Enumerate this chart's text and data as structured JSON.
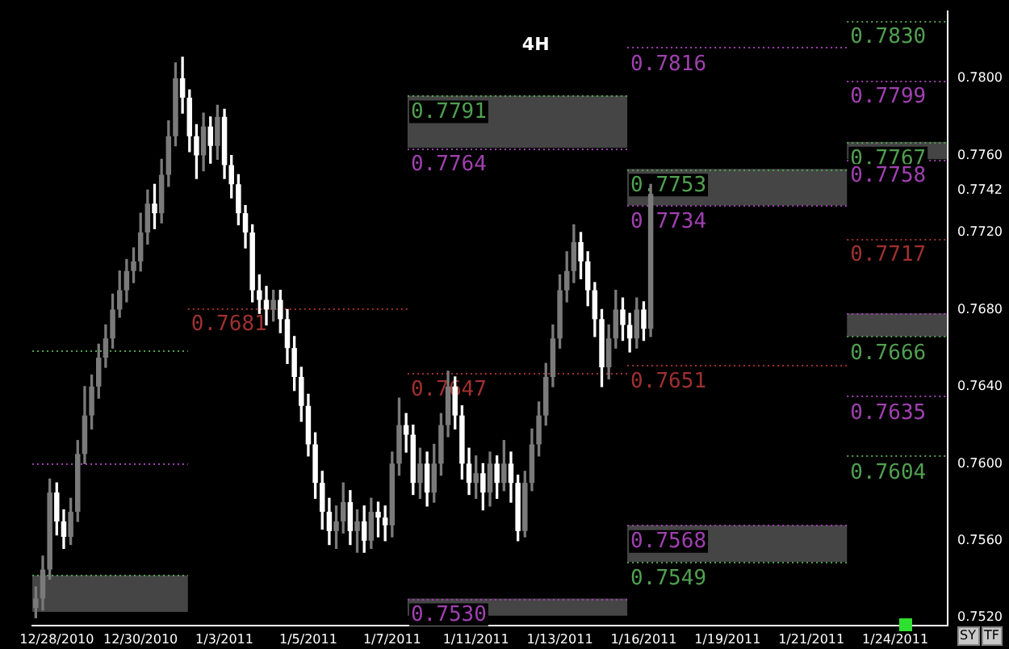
{
  "chart_data": {
    "type": "candlestick",
    "title": "4H",
    "categories": [
      null,
      null,
      null,
      "12/28/2010",
      null,
      null,
      null,
      null,
      null,
      null,
      null,
      null,
      null,
      null,
      null,
      "12/30/2010",
      null,
      null,
      null,
      null,
      null,
      null,
      null,
      null,
      null,
      null,
      null,
      "1/3/2011",
      null,
      null,
      null,
      null,
      null,
      null,
      null,
      null,
      null,
      null,
      null,
      "1/5/2011",
      null,
      null,
      null,
      null,
      null,
      null,
      null,
      null,
      null,
      null,
      null,
      "1/7/2011",
      null,
      null,
      null,
      null,
      null,
      null,
      null,
      null,
      null,
      null,
      null,
      "1/11/2011",
      null,
      null,
      null,
      null,
      null,
      null,
      null,
      null,
      null,
      null,
      null,
      "1/13/2011",
      null,
      null,
      null,
      null,
      null,
      null,
      null,
      null,
      null,
      null,
      null,
      "1/16/2011",
      null,
      null,
      null,
      null,
      null,
      null,
      null,
      null,
      null,
      null,
      null,
      "1/19/2011",
      null,
      null,
      null,
      null,
      null,
      null,
      null,
      null,
      null,
      null,
      null,
      "1/21/2011",
      null,
      null,
      null,
      null,
      null,
      null,
      null,
      null,
      null,
      null,
      null,
      "1/24/2011",
      null,
      null,
      null,
      null,
      null,
      null,
      null
    ],
    "ohlc": [
      [
        0.7525,
        0.7536,
        0.752,
        0.753
      ],
      [
        0.753,
        0.7552,
        0.7524,
        0.7545
      ],
      [
        0.7545,
        0.7592,
        0.754,
        0.7585
      ],
      [
        0.7585,
        0.759,
        0.7563,
        0.757
      ],
      [
        0.757,
        0.7576,
        0.7556,
        0.7562
      ],
      [
        0.7562,
        0.7582,
        0.7558,
        0.7575
      ],
      [
        0.7575,
        0.7612,
        0.757,
        0.7605
      ],
      [
        0.7605,
        0.764,
        0.76,
        0.7625
      ],
      [
        0.7625,
        0.7646,
        0.7618,
        0.764
      ],
      [
        0.764,
        0.7662,
        0.7634,
        0.7655
      ],
      [
        0.7655,
        0.7672,
        0.765,
        0.7665
      ],
      [
        0.7665,
        0.7688,
        0.766,
        0.768
      ],
      [
        0.768,
        0.77,
        0.7676,
        0.769
      ],
      [
        0.769,
        0.7706,
        0.7684,
        0.77
      ],
      [
        0.77,
        0.7712,
        0.7694,
        0.7705
      ],
      [
        0.7705,
        0.773,
        0.77,
        0.772
      ],
      [
        0.772,
        0.7742,
        0.7714,
        0.7735
      ],
      [
        0.7735,
        0.7745,
        0.7722,
        0.773
      ],
      [
        0.773,
        0.7758,
        0.7725,
        0.775
      ],
      [
        0.775,
        0.7778,
        0.7744,
        0.777
      ],
      [
        0.777,
        0.7808,
        0.7765,
        0.78
      ],
      [
        0.78,
        0.7811,
        0.7782,
        0.779
      ],
      [
        0.779,
        0.7794,
        0.7762,
        0.777
      ],
      [
        0.777,
        0.7776,
        0.7748,
        0.776
      ],
      [
        0.776,
        0.7782,
        0.7752,
        0.7775
      ],
      [
        0.7775,
        0.778,
        0.7756,
        0.7765
      ],
      [
        0.7765,
        0.7786,
        0.7758,
        0.778
      ],
      [
        0.778,
        0.7784,
        0.7748,
        0.7755
      ],
      [
        0.7755,
        0.776,
        0.7738,
        0.7745
      ],
      [
        0.7745,
        0.775,
        0.7724,
        0.773
      ],
      [
        0.773,
        0.7734,
        0.7712,
        0.772
      ],
      [
        0.772,
        0.7724,
        0.7684,
        0.769
      ],
      [
        0.769,
        0.7698,
        0.7678,
        0.7685
      ],
      [
        0.7685,
        0.7692,
        0.7672,
        0.768
      ],
      [
        0.768,
        0.769,
        0.7674,
        0.7685
      ],
      [
        0.7685,
        0.769,
        0.7668,
        0.7675
      ],
      [
        0.7675,
        0.768,
        0.7652,
        0.766
      ],
      [
        0.766,
        0.7666,
        0.7638,
        0.7645
      ],
      [
        0.7645,
        0.765,
        0.7622,
        0.763
      ],
      [
        0.763,
        0.7636,
        0.7604,
        0.761
      ],
      [
        0.761,
        0.7616,
        0.7582,
        0.759
      ],
      [
        0.759,
        0.7596,
        0.7566,
        0.7575
      ],
      [
        0.7575,
        0.7582,
        0.7558,
        0.7565
      ],
      [
        0.7565,
        0.7578,
        0.7556,
        0.757
      ],
      [
        0.757,
        0.759,
        0.7564,
        0.758
      ],
      [
        0.758,
        0.7586,
        0.7558,
        0.7565
      ],
      [
        0.7565,
        0.7576,
        0.7554,
        0.757
      ],
      [
        0.757,
        0.7578,
        0.7554,
        0.756
      ],
      [
        0.756,
        0.7582,
        0.7556,
        0.7575
      ],
      [
        0.7575,
        0.758,
        0.7562,
        0.7572
      ],
      [
        0.7572,
        0.7578,
        0.756,
        0.7568
      ],
      [
        0.7568,
        0.7606,
        0.7562,
        0.76
      ],
      [
        0.76,
        0.7634,
        0.7594,
        0.762
      ],
      [
        0.762,
        0.7626,
        0.7606,
        0.7615
      ],
      [
        0.7615,
        0.762,
        0.7584,
        0.759
      ],
      [
        0.759,
        0.7608,
        0.7582,
        0.76
      ],
      [
        0.76,
        0.7606,
        0.7578,
        0.7585
      ],
      [
        0.7585,
        0.761,
        0.758,
        0.76
      ],
      [
        0.76,
        0.7626,
        0.7594,
        0.762
      ],
      [
        0.762,
        0.7648,
        0.7614,
        0.764
      ],
      [
        0.764,
        0.7645,
        0.7618,
        0.7625
      ],
      [
        0.7625,
        0.763,
        0.7592,
        0.76
      ],
      [
        0.76,
        0.7608,
        0.7584,
        0.759
      ],
      [
        0.759,
        0.7604,
        0.7582,
        0.7595
      ],
      [
        0.7595,
        0.76,
        0.7576,
        0.7585
      ],
      [
        0.7585,
        0.7606,
        0.7578,
        0.76
      ],
      [
        0.76,
        0.7604,
        0.7582,
        0.759
      ],
      [
        0.759,
        0.7612,
        0.7586,
        0.76
      ],
      [
        0.76,
        0.7606,
        0.758,
        0.759
      ],
      [
        0.759,
        0.7594,
        0.756,
        0.7565
      ],
      [
        0.7565,
        0.7596,
        0.7562,
        0.759
      ],
      [
        0.759,
        0.7618,
        0.7586,
        0.761
      ],
      [
        0.761,
        0.7632,
        0.7604,
        0.7625
      ],
      [
        0.7625,
        0.7652,
        0.762,
        0.7645
      ],
      [
        0.7645,
        0.7672,
        0.764,
        0.7665
      ],
      [
        0.7665,
        0.7698,
        0.766,
        0.769
      ],
      [
        0.769,
        0.771,
        0.7684,
        0.77
      ],
      [
        0.77,
        0.7724,
        0.7694,
        0.7715
      ],
      [
        0.7715,
        0.772,
        0.7696,
        0.7705
      ],
      [
        0.7705,
        0.771,
        0.7682,
        0.769
      ],
      [
        0.769,
        0.7694,
        0.7666,
        0.7675
      ],
      [
        0.7675,
        0.768,
        0.764,
        0.765
      ],
      [
        0.765,
        0.7672,
        0.7644,
        0.7665
      ],
      [
        0.7665,
        0.769,
        0.766,
        0.768
      ],
      [
        0.768,
        0.7686,
        0.7664,
        0.7672
      ],
      [
        0.7672,
        0.7678,
        0.7658,
        0.7665
      ],
      [
        0.7665,
        0.7686,
        0.766,
        0.768
      ],
      [
        0.768,
        0.7684,
        0.7664,
        0.767
      ],
      [
        0.767,
        0.7745,
        0.7666,
        0.774
      ],
      null,
      null,
      null,
      null,
      null,
      null,
      null,
      null,
      null,
      null,
      null,
      null,
      null,
      null,
      null,
      null,
      null,
      null,
      null,
      null,
      null,
      null,
      null,
      null,
      null,
      null,
      null,
      null,
      null,
      null,
      null,
      null,
      null,
      null,
      null,
      null,
      null,
      null,
      null,
      null,
      null,
      null
    ],
    "ylim": [
      0.7516,
      0.7835
    ],
    "yticks": [
      {
        "value": 0.752,
        "label": "0.7520"
      },
      {
        "value": 0.756,
        "label": "0.7560"
      },
      {
        "value": 0.76,
        "label": "0.7600"
      },
      {
        "value": 0.764,
        "label": "0.7640"
      },
      {
        "value": 0.768,
        "label": "0.7680"
      },
      {
        "value": 0.7742,
        "label": "0.7742"
      },
      {
        "value": 0.772,
        "label": "0.7720"
      },
      {
        "value": 0.776,
        "label": "0.7760"
      },
      {
        "value": 0.78,
        "label": "0.7800"
      }
    ],
    "grid": false,
    "legend": false,
    "ref_lines": [
      {
        "axis": "y",
        "value": 0.783,
        "label": "0.7830",
        "color": "#50a050",
        "line_style": "dotted"
      },
      {
        "axis": "y",
        "value": 0.7816,
        "label": "0.7816",
        "color": "#a040b0",
        "line_style": "dotted"
      },
      {
        "axis": "y",
        "value": 0.7799,
        "label": "0.7799",
        "color": "#a040b0",
        "line_style": "dotted"
      },
      {
        "axis": "y",
        "value": 0.7791,
        "label": "0.7791",
        "color": "#50a050",
        "line_style": "dotted"
      },
      {
        "axis": "y",
        "value": 0.7764,
        "label": "0.7764",
        "color": "#a040b0",
        "line_style": "dotted"
      },
      {
        "axis": "y",
        "value": 0.7767,
        "label": "0.7767",
        "color": "#50a050",
        "line_style": "dotted"
      },
      {
        "axis": "y",
        "value": 0.7758,
        "label": "0.7758",
        "color": "#a040b0",
        "line_style": "dotted"
      },
      {
        "axis": "y",
        "value": 0.7753,
        "label": "0.7753",
        "color": "#50a050",
        "line_style": "dotted"
      },
      {
        "axis": "y",
        "value": 0.7734,
        "label": "0.7734",
        "color": "#a040b0",
        "line_style": "dotted"
      },
      {
        "axis": "y",
        "value": 0.7717,
        "label": "0.7717",
        "color": "#a03030",
        "line_style": "dotted"
      },
      {
        "axis": "y",
        "value": 0.7681,
        "label": "0.7681",
        "color": "#a03030",
        "line_style": "dotted"
      },
      {
        "axis": "y",
        "value": 0.7678,
        "color": "#a040b0",
        "line_style": "dotted"
      },
      {
        "axis": "y",
        "value": 0.7666,
        "label": "0.7666",
        "color": "#50a050",
        "line_style": "dotted"
      },
      {
        "axis": "y",
        "value": 0.7659,
        "color": "#50a050",
        "line_style": "dotted"
      },
      {
        "axis": "y",
        "value": 0.7651,
        "label": "0.7651",
        "color": "#a03030",
        "line_style": "dotted"
      },
      {
        "axis": "y",
        "value": 0.7647,
        "label": "0.7647",
        "color": "#a03030",
        "line_style": "dotted"
      },
      {
        "axis": "y",
        "value": 0.7635,
        "label": "0.7635",
        "color": "#a040b0",
        "line_style": "dotted"
      },
      {
        "axis": "y",
        "value": 0.7604,
        "label": "0.7604",
        "color": "#50a050",
        "line_style": "dotted"
      },
      {
        "axis": "y",
        "value": 0.76,
        "color": "#a040b0",
        "line_style": "dotted"
      },
      {
        "axis": "y",
        "value": 0.7568,
        "label": "0.7568",
        "color": "#a040b0",
        "line_style": "dotted"
      },
      {
        "axis": "y",
        "value": 0.7549,
        "label": "0.7549",
        "color": "#50a050",
        "line_style": "dotted"
      },
      {
        "axis": "y",
        "value": 0.7542,
        "color": "#50a050",
        "line_style": "dotted"
      },
      {
        "axis": "y",
        "value": 0.753,
        "label": "0.7530",
        "color": "#a040b0",
        "line_style": "dotted"
      }
    ],
    "bands": [
      {
        "axis": "y",
        "from": 0.7764,
        "to": 0.7791,
        "color": "#9a9a9a"
      },
      {
        "axis": "y",
        "from": 0.7758,
        "to": 0.7767,
        "color": "#9a9a9a"
      },
      {
        "axis": "y",
        "from": 0.7734,
        "to": 0.7753,
        "color": "#9a9a9a"
      },
      {
        "axis": "y",
        "from": 0.7666,
        "to": 0.7678,
        "color": "#9a9a9a"
      },
      {
        "axis": "y",
        "from": 0.7549,
        "to": 0.7568,
        "color": "#9a9a9a"
      },
      {
        "axis": "y",
        "from": 0.7523,
        "to": 0.7542,
        "color": "#9a9a9a"
      },
      {
        "axis": "y",
        "from": 0.7521,
        "to": 0.753,
        "color": "#9a9a9a"
      }
    ],
    "annotations": [
      "SY",
      "TF"
    ]
  }
}
